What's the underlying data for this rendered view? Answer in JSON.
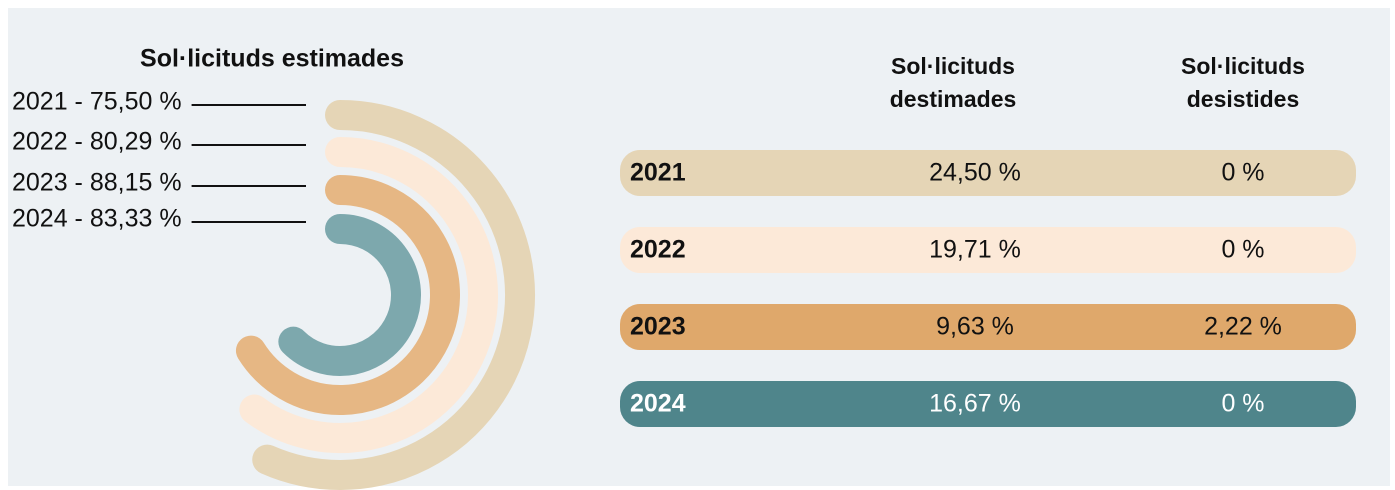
{
  "chart_data": {
    "type": "radial-bar",
    "title": "Sol·licituds estimades",
    "categories": [
      "2021",
      "2022",
      "2023",
      "2024"
    ],
    "values": [
      75.5,
      80.29,
      88.15,
      83.33
    ],
    "value_labels": [
      "2021 - 75,50 %",
      "2022 - 80,29 %",
      "2023 - 88,15 %",
      "2024 - 83,33 %"
    ],
    "colors": [
      "#e5d5b6",
      "#fce9d8",
      "#e6b784",
      "#7da8ad"
    ]
  },
  "table": {
    "headers": [
      [
        "Sol·licituds",
        "destimades"
      ],
      [
        "Sol·licituds",
        "desistides"
      ]
    ],
    "row_colors": [
      "#e5d5b6",
      "#fce9d8",
      "#dfa86b",
      "#4f858b"
    ],
    "rows": [
      [
        "2021",
        "24,50 %",
        "0 %"
      ],
      [
        "2022",
        "19,71 %",
        "0 %"
      ],
      [
        "2023",
        "9,63 %",
        "2,22 %"
      ],
      [
        "2024",
        "16,67 %",
        "0 %"
      ]
    ]
  }
}
